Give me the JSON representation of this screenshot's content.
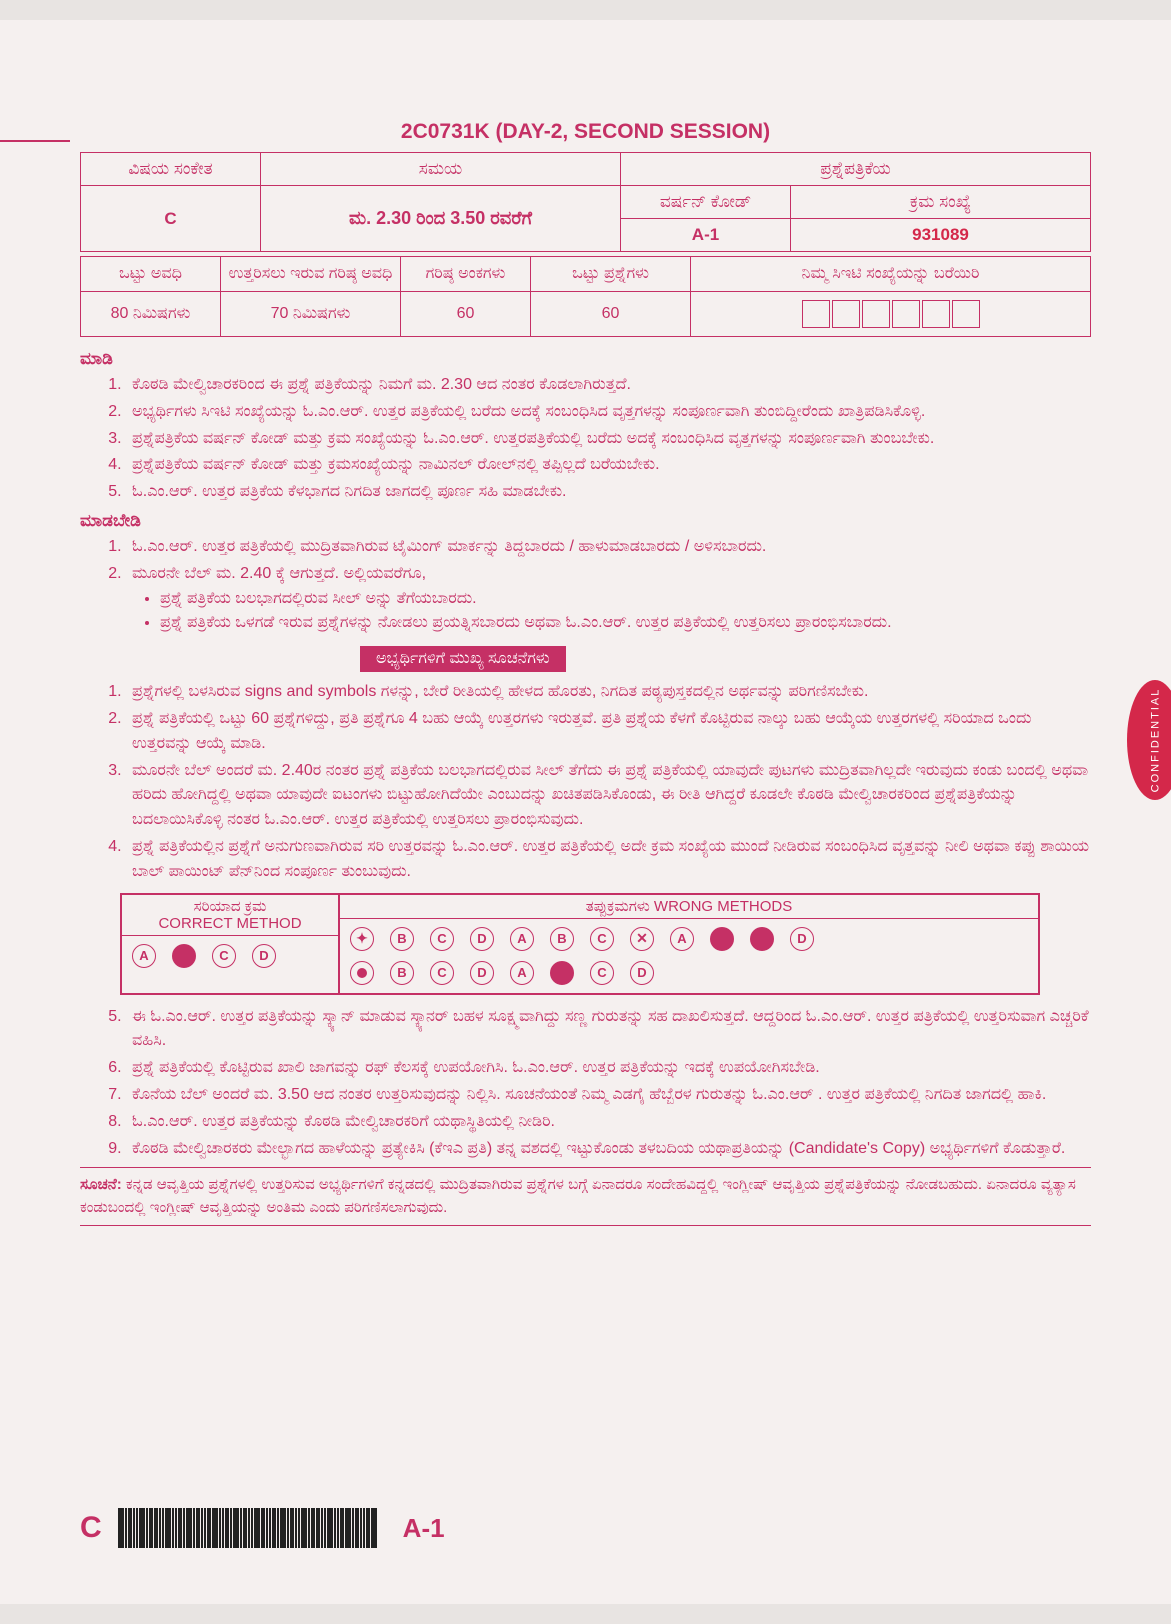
{
  "colors": {
    "primary": "#c53065",
    "accent": "#d4284a",
    "page_bg": "#f5f0ef",
    "body_bg": "#e8e4e2",
    "white": "#ffffff",
    "barcode": "#222222"
  },
  "title": "2C0731K (DAY-2, SECOND SESSION)",
  "header": {
    "col1_label": "ವಿಷಯ ಸಂಕೇತ",
    "col2_label": "ಸಮಯ",
    "col3_label": "ಪ್ರಶ್ನೆಪತ್ರಿಕೆಯ",
    "subject_code": "C",
    "time": "ಮ. 2.30 ರಿಂದ 3.50 ರವರೆಗೆ",
    "version_label": "ವರ್ಷನ್ ಕೋಡ್",
    "version_code": "A-1",
    "serial_label": "ಕ್ರಮ ಸಂಖ್ಯೆ",
    "serial_number": "931089"
  },
  "subheader": {
    "c1": "ಒಟ್ಟು ಅವಧಿ",
    "c2": "ಉತ್ತರಿಸಲು ಇರುವ ಗರಿಷ್ಠ ಅವಧಿ",
    "c3": "ಗರಿಷ್ಠ ಅಂಕಗಳು",
    "c4": "ಒಟ್ಟು ಪ್ರಶ್ನೆಗಳು",
    "c5": "ನಿಮ್ಮ ಸಿಇಟಿ ಸಂಖ್ಯೆಯನ್ನು ಬರೆಯಿರಿ",
    "v1": "80 ನಿಮಿಷಗಳು",
    "v2": "70 ನಿಮಿಷಗಳು",
    "v3": "60",
    "v4": "60"
  },
  "do_head": "ಮಾಡಿ",
  "do_items": [
    "ಕೊಠಡಿ ಮೇಲ್ವಿಚಾರಕರಿಂದ ಈ ಪ್ರಶ್ನೆ ಪತ್ರಿಕೆಯನ್ನು ನಿಮಗೆ ಮ. 2.30 ಆದ ನಂತರ ಕೊಡಲಾಗಿರುತ್ತದೆ.",
    "ಅಭ್ಯರ್ಥಿಗಳು ಸಿಇಟಿ ಸಂಖ್ಯೆಯನ್ನು ಓ.ಎಂ.ಆರ್. ಉತ್ತರ ಪತ್ರಿಕೆಯಲ್ಲಿ ಬರೆದು ಅದಕ್ಕೆ ಸಂಬಂಧಿಸಿದ ವೃತ್ತಗಳನ್ನು ಸಂಪೂರ್ಣವಾಗಿ ತುಂಬಿದ್ದೀರೆಂದು ಖಾತ್ರಿಪಡಿಸಿಕೊಳ್ಳಿ.",
    "ಪ್ರಶ್ನೆಪತ್ರಿಕೆಯ ವರ್ಷನ್ ಕೋಡ್ ಮತ್ತು ಕ್ರಮ ಸಂಖ್ಯೆಯನ್ನು ಓ.ಎಂ.ಆರ್. ಉತ್ತರಪತ್ರಿಕೆಯಲ್ಲಿ ಬರೆದು ಅದಕ್ಕೆ ಸಂಬಂಧಿಸಿದ ವೃತ್ತಗಳನ್ನು ಸಂಪೂರ್ಣವಾಗಿ ತುಂಬಬೇಕು.",
    "ಪ್ರಶ್ನೆಪತ್ರಿಕೆಯ ವರ್ಷನ್ ಕೋಡ್ ಮತ್ತು ಕ್ರಮಸಂಖ್ಯೆಯನ್ನು ನಾಮಿನಲ್ ರೋಲ್‌ನಲ್ಲಿ ತಪ್ಪಿಲ್ಲದೆ ಬರೆಯಬೇಕು.",
    "ಓ.ಎಂ.ಆರ್. ಉತ್ತರ ಪತ್ರಿಕೆಯ ಕೆಳಭಾಗದ ನಿಗದಿತ ಜಾಗದಲ್ಲಿ ಪೂರ್ಣ ಸಹಿ ಮಾಡಬೇಕು."
  ],
  "dont_head": "ಮಾಡಬೇಡಿ",
  "dont_items": {
    "i1": "ಓ.ಎಂ.ಆರ್. ಉತ್ತರ ಪತ್ರಿಕೆಯಲ್ಲಿ ಮುದ್ರಿತವಾಗಿರುವ ಟೈಮಿಂಗ್ ಮಾರ್ಕನ್ನು ತಿದ್ದಬಾರದು / ಹಾಳುಮಾಡಬಾರದು / ಅಳಿಸಬಾರದು.",
    "i2": "ಮೂರನೇ ಬೆಲ್ ಮ. 2.40 ಕ್ಕೆ ಆಗುತ್ತದೆ. ಅಲ್ಲಿಯವರೆಗೂ,",
    "b1": "ಪ್ರಶ್ನೆ ಪತ್ರಿಕೆಯ ಬಲಭಾಗದಲ್ಲಿರುವ ಸೀಲ್ ಅನ್ನು ತೆಗೆಯಬಾರದು.",
    "b2": "ಪ್ರಶ್ನೆ ಪತ್ರಿಕೆಯ ಒಳಗಡೆ ಇರುವ ಪ್ರಶ್ನೆಗಳನ್ನು ನೋಡಲು ಪ್ರಯತ್ನಿಸಬಾರದು ಅಥವಾ ಓ.ಎಂ.ಆರ್. ಉತ್ತರ ಪತ್ರಿಕೆಯಲ್ಲಿ ಉತ್ತರಿಸಲು ಪ್ರಾರಂಭಿಸಬಾರದು."
  },
  "banner": "ಅಭ್ಯರ್ಥಿಗಳಿಗೆ ಮುಖ್ಯ ಸೂಚನೆಗಳು",
  "main_items": {
    "i1": "ಪ್ರಶ್ನೆಗಳಲ್ಲಿ ಬಳಸಿರುವ signs and symbols ಗಳನ್ನು, ಬೇರೆ ರೀತಿಯಲ್ಲಿ ಹೇಳದ ಹೊರತು, ನಿಗದಿತ ಪಠ್ಯಪುಸ್ತಕದಲ್ಲಿನ ಅರ್ಥವನ್ನು ಪರಿಗಣಿಸಬೇಕು.",
    "i2": "ಪ್ರಶ್ನೆ ಪತ್ರಿಕೆಯಲ್ಲಿ ಒಟ್ಟು 60 ಪ್ರಶ್ನೆಗಳಿದ್ದು, ಪ್ರತಿ ಪ್ರಶ್ನೆಗೂ 4 ಬಹು ಆಯ್ಕೆ ಉತ್ತರಗಳು ಇರುತ್ತವೆ. ಪ್ರತಿ ಪ್ರಶ್ನೆಯ ಕೆಳಗೆ ಕೊಟ್ಟಿರುವ ನಾಲ್ಕು ಬಹು ಆಯ್ಕೆಯ ಉತ್ತರಗಳಲ್ಲಿ ಸರಿಯಾದ ಒಂದು ಉತ್ತರವನ್ನು ಆಯ್ಕೆ ಮಾಡಿ.",
    "i3": "ಮೂರನೇ ಬೆಲ್ ಅಂದರೆ ಮ. 2.40ರ ನಂತರ ಪ್ರಶ್ನೆ ಪತ್ರಿಕೆಯ ಬಲಭಾಗದಲ್ಲಿರುವ ಸೀಲ್ ತೆಗೆದು ಈ ಪ್ರಶ್ನೆ ಪತ್ರಿಕೆಯಲ್ಲಿ ಯಾವುದೇ ಪುಟಗಳು ಮುದ್ರಿತವಾಗಿಲ್ಲದೇ ಇರುವುದು ಕಂಡು ಬಂದಲ್ಲಿ ಅಥವಾ ಹರಿದು ಹೋಗಿದ್ದಲ್ಲಿ ಅಥವಾ ಯಾವುದೇ ಐಟಂಗಳು ಬಿಟ್ಟುಹೋಗಿದೆಯೇ ಎಂಬುದನ್ನು ಖಚಿತಪಡಿಸಿಕೊಂಡು, ಈ ರೀತಿ ಆಗಿದ್ದರೆ ಕೂಡಲೇ ಕೊಠಡಿ ಮೇಲ್ವಿಚಾರಕರಿಂದ ಪ್ರಶ್ನೆಪತ್ರಿಕೆಯನ್ನು ಬದಲಾಯಿಸಿಕೊಳ್ಳಿ ನಂತರ  ಓ.ಎಂ.ಆರ್. ಉತ್ತರ ಪತ್ರಿಕೆಯಲ್ಲಿ ಉತ್ತರಿಸಲು ಪ್ರಾರಂಭಿಸುವುದು.",
    "i4": "ಪ್ರಶ್ನೆ ಪತ್ರಿಕೆಯಲ್ಲಿನ ಪ್ರಶ್ನೆಗೆ ಅನುಗುಣವಾಗಿರುವ ಸರಿ ಉತ್ತರವನ್ನು ಓ.ಎಂ.ಆರ್. ಉತ್ತರ ಪತ್ರಿಕೆಯಲ್ಲಿ ಅದೇ ಕ್ರಮ ಸಂಖ್ಯೆಯ ಮುಂದೆ ನೀಡಿರುವ ಸಂಬಂಧಿಸಿದ ವೃತ್ತವನ್ನು ನೀಲಿ ಅಥವಾ ಕಪ್ಪು ಶಾಯಿಯ ಬಾಲ್ ಪಾಯಿಂಟ್ ಪೆನ್‌ನಿಂದ ಸಂಪೂರ್ಣ ತುಂಬುವುದು.",
    "i5": "ಈ ಓ.ಎಂ.ಆರ್. ಉತ್ತರ ಪತ್ರಿಕೆಯನ್ನು ಸ್ಕ್ಯಾನ್ ಮಾಡುವ ಸ್ಕ್ಯಾನರ್ ಬಹಳ ಸೂಕ್ಷ್ಮವಾಗಿದ್ದು ಸಣ್ಣ ಗುರುತನ್ನು ಸಹ ದಾಖಲಿಸುತ್ತದೆ. ಆದ್ದರಿಂದ ಓ.ಎಂ.ಆರ್. ಉತ್ತರ ಪತ್ರಿಕೆಯಲ್ಲಿ ಉತ್ತರಿಸುವಾಗ ಎಚ್ಚರಿಕೆ ವಹಿಸಿ.",
    "i6": "ಪ್ರಶ್ನೆ ಪತ್ರಿಕೆಯಲ್ಲಿ ಕೊಟ್ಟಿರುವ ಖಾಲಿ ಜಾಗವನ್ನು ರಫ್ ಕೆಲಸಕ್ಕೆ ಉಪಯೋಗಿಸಿ. ಓ.ಎಂ.ಆರ್. ಉತ್ತರ ಪತ್ರಿಕೆಯನ್ನು ಇದಕ್ಕೆ ಉಪಯೋಗಿಸಬೇಡಿ.",
    "i7": "ಕೊನೆಯ ಬೆಲ್ ಅಂದರೆ ಮ. 3.50 ಆದ ನಂತರ ಉತ್ತರಿಸುವುದನ್ನು ನಿಲ್ಲಿಸಿ. ಸೂಚನೆಯಂತೆ ನಿಮ್ಮ ಎಡಗೈ ಹೆಬ್ಬೆರಳ ಗುರುತನ್ನು ಓ.ಎಂ.ಆರ್ . ಉತ್ತರ ಪತ್ರಿಕೆಯಲ್ಲಿ ನಿಗದಿತ ಜಾಗದಲ್ಲಿ ಹಾಕಿ.",
    "i8": "ಓ.ಎಂ.ಆರ್. ಉತ್ತರ ಪತ್ರಿಕೆಯನ್ನು ಕೊಠಡಿ ಮೇಲ್ವಿಚಾರಕರಿಗೆ ಯಥಾಸ್ಥಿತಿಯಲ್ಲಿ ನೀಡಿರಿ.",
    "i9": "ಕೊಠಡಿ ಮೇಲ್ವಿಚಾರಕರು ಮೇಲ್ಭಾಗದ ಹಾಳೆಯನ್ನು ಪ್ರತ್ಯೇಕಿಸಿ (ಕೆಇಎ ಪ್ರತಿ) ತನ್ನ ವಶದಲ್ಲಿ ಇಟ್ಟುಕೊಂಡು ತಳಬದಿಯ ಯಥಾಪ್ರತಿಯನ್ನು (Candidate's Copy) ಅಭ್ಯರ್ಥಿಗಳಿಗೆ ಕೊಡುತ್ತಾರೆ."
  },
  "methods": {
    "left_title_kn": "ಸರಿಯಾದ ಕ್ರಮ",
    "left_title_en": "CORRECT METHOD",
    "right_title": "ತಪ್ಪುಕ್ರಮಗಳು WRONG METHODS",
    "letters": {
      "A": "A",
      "B": "B",
      "C": "C",
      "D": "D"
    }
  },
  "note": {
    "label": "ಸೂಚನೆ:",
    "text": "ಕನ್ನಡ ಆವೃತ್ತಿಯ ಪ್ರಶ್ನೆಗಳಲ್ಲಿ ಉತ್ತರಿಸುವ ಅಭ್ಯರ್ಥಿಗಳಿಗೆ ಕನ್ನಡದಲ್ಲಿ ಮುದ್ರಿತವಾಗಿರುವ ಪ್ರಶ್ನೆಗಳ ಬಗ್ಗೆ ಏನಾದರೂ ಸಂದೇಹವಿದ್ದಲ್ಲಿ ಇಂಗ್ಲೀಷ್ ಆವೃತ್ತಿಯ ಪ್ರಶ್ನೆಪತ್ರಿಕೆಯನ್ನು ನೋಡಬಹುದು. ಏನಾದರೂ ವ್ಯತ್ಯಾಸ ಕಂಡುಬಂದಲ್ಲಿ ಇಂಗ್ಲೀಷ್ ಆವೃತ್ತಿಯನ್ನು ಅಂತಿಮ ಎಂದು ಪರಿಗಣಿಸಲಾಗುವುದು."
  },
  "footer": {
    "c": "C",
    "a1": "A-1"
  },
  "confidential": "CONFIDENTIAL",
  "barcode_widths": [
    3,
    1,
    2,
    1,
    1,
    3,
    1,
    2,
    2,
    1,
    1,
    3,
    1,
    1,
    2,
    1,
    3,
    1,
    2,
    1,
    1,
    2,
    3,
    1,
    1,
    2,
    1,
    3,
    1,
    2,
    1,
    1,
    3,
    2,
    1,
    1,
    2,
    1,
    3,
    1,
    2,
    1,
    1,
    3,
    1,
    2,
    2,
    1,
    1,
    3,
    1,
    1,
    2,
    3,
    1,
    2,
    1,
    1,
    2,
    3
  ]
}
